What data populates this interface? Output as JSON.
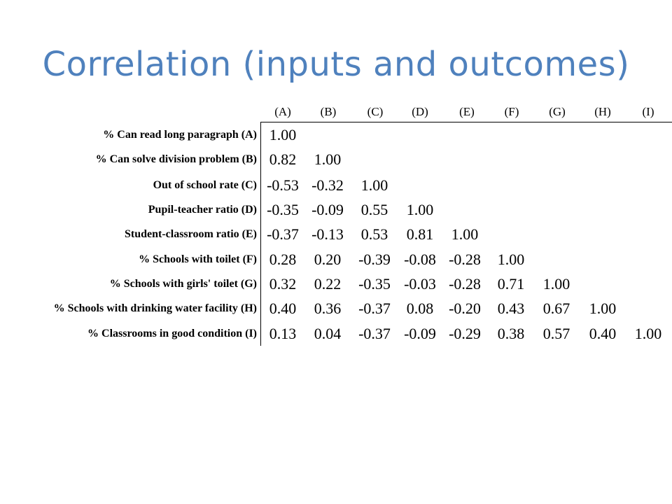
{
  "slide": {
    "title": "Correlation (inputs and outcomes)"
  },
  "matrix": {
    "column_headers": [
      "(A)",
      "(B)",
      "(C)",
      "(D)",
      "(E)",
      "(F)",
      "(G)",
      "(H)",
      "(I)"
    ],
    "rows": [
      {
        "label": "% Can read long paragraph (A)",
        "values": [
          "1.00"
        ]
      },
      {
        "label": "% Can solve division problem (B)",
        "values": [
          "0.82",
          "1.00"
        ]
      },
      {
        "label": "Out of school rate (C)",
        "values": [
          "-0.53",
          "-0.32",
          "1.00"
        ]
      },
      {
        "label": "Pupil-teacher ratio (D)",
        "values": [
          "-0.35",
          "-0.09",
          "0.55",
          "1.00"
        ]
      },
      {
        "label": "Student-classroom ratio (E)",
        "values": [
          "-0.37",
          "-0.13",
          "0.53",
          "0.81",
          "1.00"
        ]
      },
      {
        "label": "% Schools with toilet (F)",
        "values": [
          "0.28",
          "0.20",
          "-0.39",
          "-0.08",
          "-0.28",
          "1.00"
        ]
      },
      {
        "label": "% Schools with girls' toilet (G)",
        "values": [
          "0.32",
          "0.22",
          "-0.35",
          "-0.03",
          "-0.28",
          "0.71",
          "1.00"
        ]
      },
      {
        "label": "% Schools with drinking water facility (H)",
        "values": [
          "0.40",
          "0.36",
          "-0.37",
          "0.08",
          "-0.20",
          "0.43",
          "0.67",
          "1.00"
        ]
      },
      {
        "label": "% Classrooms in good condition (I)",
        "values": [
          "0.13",
          "0.04",
          "-0.37",
          "-0.09",
          "-0.29",
          "0.38",
          "0.57",
          "0.40",
          "1.00"
        ]
      }
    ]
  }
}
